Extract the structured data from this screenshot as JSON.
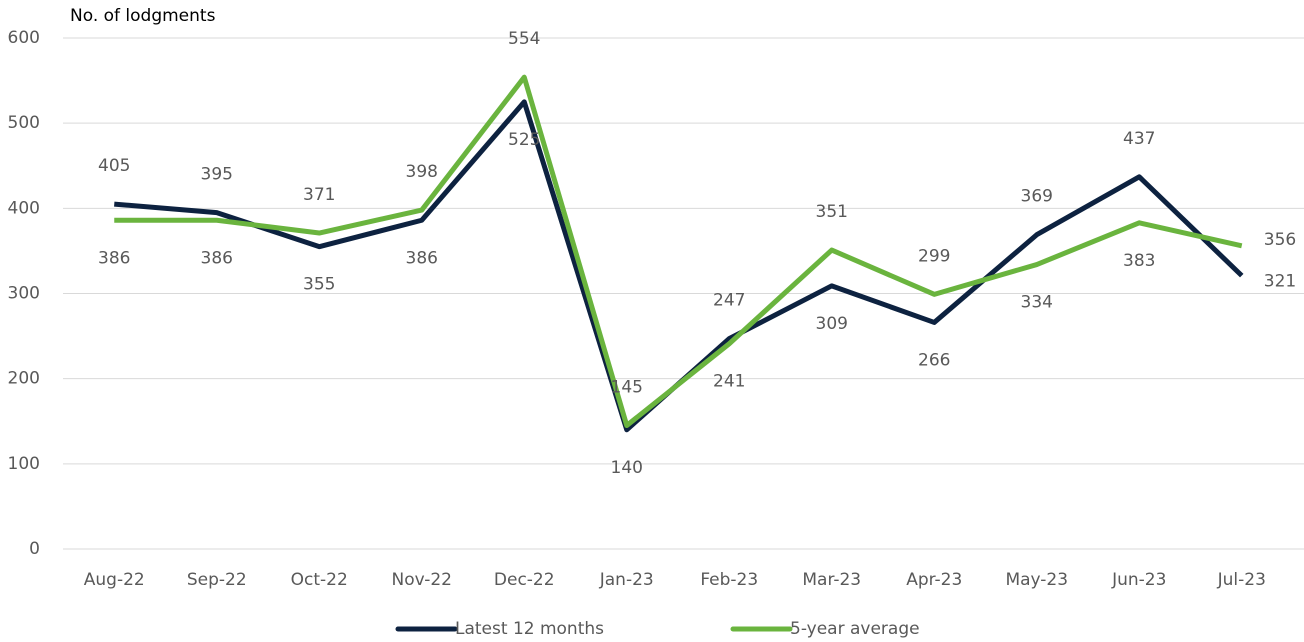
{
  "chart_data": {
    "type": "line",
    "title": "No. of lodgments",
    "categories": [
      "Aug-22",
      "Sep-22",
      "Oct-22",
      "Nov-22",
      "Dec-22",
      "Jan-23",
      "Feb-23",
      "Mar-23",
      "Apr-23",
      "May-23",
      "Jun-23",
      "Jul-23"
    ],
    "series": [
      {
        "name": "Latest 12 months",
        "color": "#0d2240",
        "values": [
          405,
          395,
          355,
          386,
          525,
          140,
          247,
          309,
          266,
          369,
          437,
          321
        ]
      },
      {
        "name": "5-year average",
        "color": "#6ab43e",
        "values": [
          386,
          386,
          371,
          398,
          554,
          145,
          241,
          351,
          299,
          334,
          383,
          356
        ]
      }
    ],
    "ylim": [
      0,
      600
    ],
    "yticks": [
      0,
      100,
      200,
      300,
      400,
      500,
      600
    ],
    "grid": true,
    "legend": "bottom"
  }
}
